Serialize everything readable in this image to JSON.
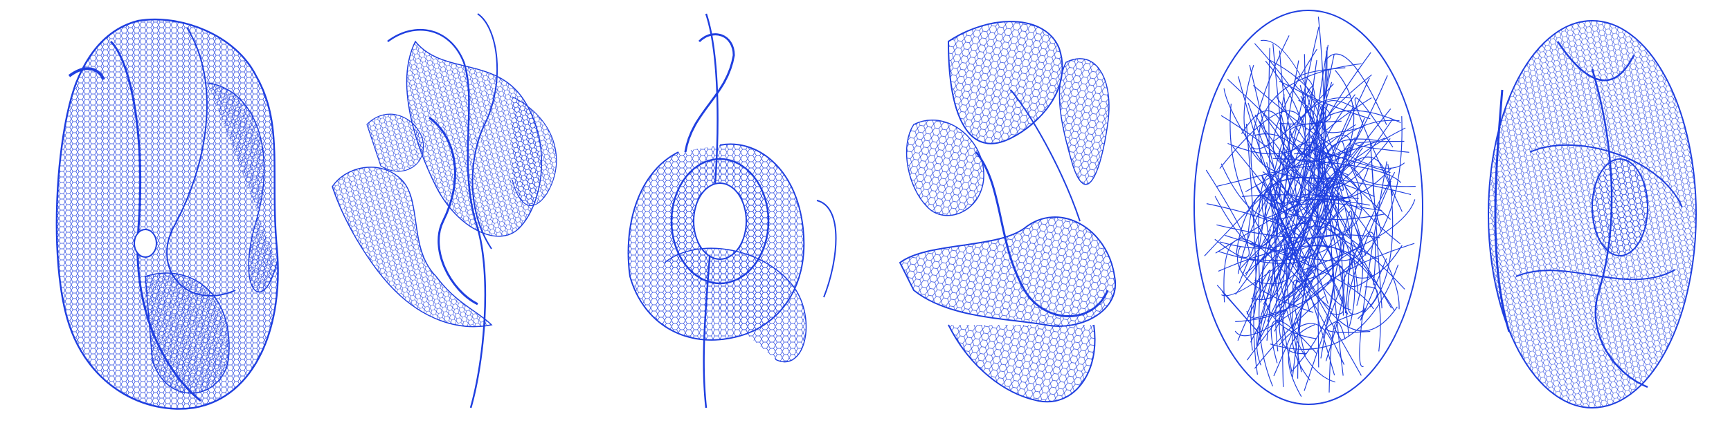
{
  "figure": {
    "panels": [
      {
        "id": "mesh-1",
        "shape": "blob-with-hole",
        "style": "hexagonal-wireframe"
      },
      {
        "id": "mesh-2",
        "shape": "tangled-folds",
        "style": "hexagonal-wireframe"
      },
      {
        "id": "mesh-3",
        "shape": "ring-with-ribbons",
        "style": "hexagonal-wireframe"
      },
      {
        "id": "mesh-4",
        "shape": "twisted-folds",
        "style": "hexagonal-wireframe"
      },
      {
        "id": "mesh-5",
        "shape": "chaotic-ellipsoid",
        "style": "random-wireframe"
      },
      {
        "id": "mesh-6",
        "shape": "folded-ellipsoid",
        "style": "hexagonal-wireframe"
      }
    ],
    "colors": {
      "mesh_stroke": "#1f3fe0",
      "caption_fragments": "#2c9b2c",
      "background": "#ffffff"
    }
  }
}
